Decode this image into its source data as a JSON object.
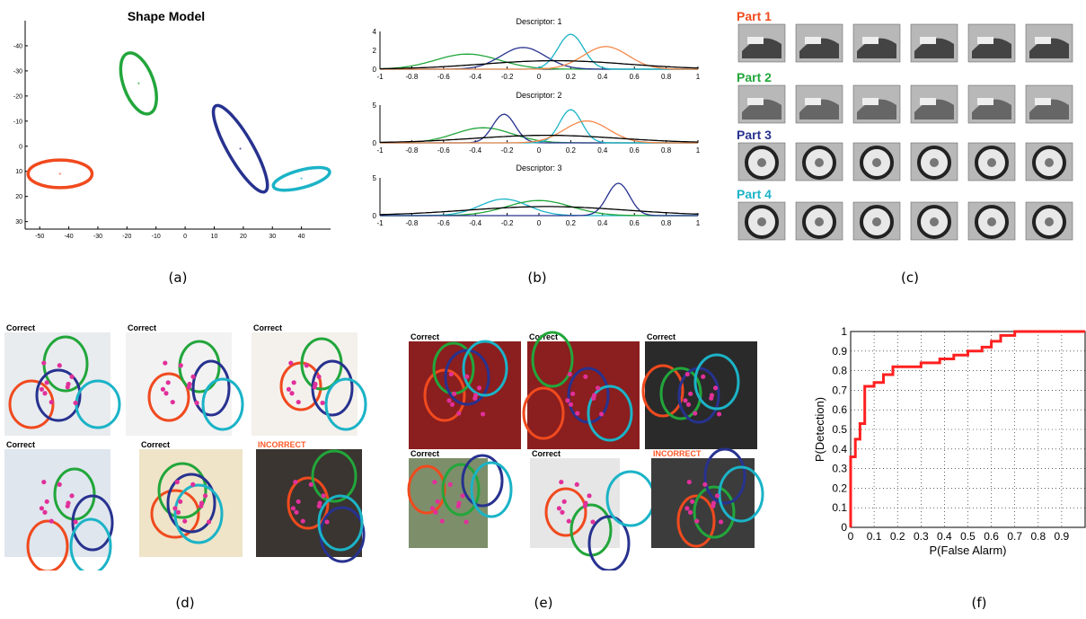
{
  "captions": {
    "a": "(a)",
    "b": "(b)",
    "c": "(c)",
    "d": "(d)",
    "e": "(e)",
    "f": "(f)"
  },
  "shape_model": {
    "title": "Shape Model",
    "x_ticks": [
      "-50",
      "-40",
      "-30",
      "-20",
      "-10",
      "0",
      "10",
      "20",
      "30",
      "40"
    ],
    "y_ticks": [
      "-40",
      "-30",
      "-20",
      "-10",
      "0",
      "10",
      "20",
      "30"
    ],
    "ellipses": [
      {
        "part": 1,
        "color": "#f04a1e",
        "cx": -43,
        "cy": 11,
        "rx": 11,
        "ry": 5.5,
        "angle": 0
      },
      {
        "part": 2,
        "color": "#22a63b",
        "cx": -16,
        "cy": -25,
        "rx": 11,
        "ry": 6,
        "angle": 70
      },
      {
        "part": 3,
        "color": "#27328f",
        "cx": 19,
        "cy": 1,
        "rx": 17,
        "ry": 5,
        "angle": 60
      },
      {
        "part": 4,
        "color": "#1bb3c7",
        "cx": 40,
        "cy": 13,
        "rx": 10,
        "ry": 3.5,
        "angle": -15
      }
    ]
  },
  "chart_data": [
    {
      "type": "line",
      "title": "Descriptor: 1",
      "xlim": [
        -1,
        1
      ],
      "ylim": [
        0,
        4
      ],
      "x_ticks": [
        "-1",
        "-0.8",
        "-0.6",
        "-0.4",
        "-0.2",
        "0",
        "0.2",
        "0.4",
        "0.6",
        "0.8",
        "1"
      ],
      "y_ticks": [
        "0",
        "2",
        "4"
      ],
      "series": [
        {
          "color": "#22a63b",
          "mean": -0.45,
          "sd": 0.2,
          "peak": 1.6
        },
        {
          "color": "#27328f",
          "mean": -0.1,
          "sd": 0.14,
          "peak": 2.3
        },
        {
          "color": "#1bb3c7",
          "mean": 0.2,
          "sd": 0.08,
          "peak": 3.7
        },
        {
          "color": "#f5884a",
          "mean": 0.42,
          "sd": 0.14,
          "peak": 2.4
        },
        {
          "color": "#000000",
          "mean": 0.1,
          "sd": 0.45,
          "peak": 0.9
        }
      ]
    },
    {
      "type": "line",
      "title": "Descriptor: 2",
      "xlim": [
        -1,
        1
      ],
      "ylim": [
        0,
        5
      ],
      "x_ticks": [
        "-1",
        "-0.8",
        "-0.6",
        "-0.4",
        "-0.2",
        "0",
        "0.2",
        "0.4",
        "0.6",
        "0.8",
        "1"
      ],
      "y_ticks": [
        "0",
        "5"
      ],
      "series": [
        {
          "color": "#22a63b",
          "mean": -0.35,
          "sd": 0.18,
          "peak": 2.0
        },
        {
          "color": "#27328f",
          "mean": -0.22,
          "sd": 0.07,
          "peak": 3.8
        },
        {
          "color": "#1bb3c7",
          "mean": 0.2,
          "sd": 0.07,
          "peak": 4.4
        },
        {
          "color": "#f5884a",
          "mean": 0.3,
          "sd": 0.14,
          "peak": 2.9
        },
        {
          "color": "#000000",
          "mean": 0.05,
          "sd": 0.45,
          "peak": 1.0
        }
      ]
    },
    {
      "type": "line",
      "title": "Descriptor: 3",
      "xlim": [
        -1,
        1
      ],
      "ylim": [
        0,
        5
      ],
      "x_ticks": [
        "-1",
        "-0.8",
        "-0.6",
        "-0.4",
        "-0.2",
        "0",
        "0.2",
        "0.4",
        "0.6",
        "0.8",
        "1"
      ],
      "y_ticks": [
        "0",
        "5"
      ],
      "series": [
        {
          "color": "#1bb3c7",
          "mean": -0.22,
          "sd": 0.15,
          "peak": 2.2
        },
        {
          "color": "#22a63b",
          "mean": 0.0,
          "sd": 0.2,
          "peak": 2.0
        },
        {
          "color": "#27328f",
          "mean": 0.5,
          "sd": 0.07,
          "peak": 4.3
        },
        {
          "color": "#000000",
          "mean": 0.05,
          "sd": 0.5,
          "peak": 1.2
        }
      ]
    },
    {
      "type": "line",
      "xlabel": "P(False Alarm)",
      "ylabel": "P(Detection)",
      "xlim": [
        0,
        1
      ],
      "ylim": [
        0,
        1
      ],
      "x_ticks": [
        "0",
        "0.1",
        "0.2",
        "0.3",
        "0.4",
        "0.5",
        "0.6",
        "0.7",
        "0.8",
        "0.9"
      ],
      "y_ticks": [
        "0",
        "0.1",
        "0.2",
        "0.3",
        "0.4",
        "0.5",
        "0.6",
        "0.7",
        "0.8",
        "0.9",
        "1"
      ],
      "grid": true,
      "color": "#ff2020",
      "x": [
        0,
        0,
        0.02,
        0.02,
        0.04,
        0.04,
        0.06,
        0.06,
        0.1,
        0.1,
        0.14,
        0.14,
        0.18,
        0.18,
        0.3,
        0.3,
        0.38,
        0.38,
        0.44,
        0.44,
        0.5,
        0.5,
        0.56,
        0.56,
        0.6,
        0.6,
        0.64,
        0.64,
        0.7,
        0.7,
        1.0
      ],
      "y": [
        0,
        0.36,
        0.36,
        0.45,
        0.45,
        0.53,
        0.53,
        0.72,
        0.72,
        0.74,
        0.74,
        0.78,
        0.78,
        0.82,
        0.82,
        0.84,
        0.84,
        0.86,
        0.86,
        0.88,
        0.88,
        0.9,
        0.9,
        0.92,
        0.92,
        0.95,
        0.95,
        0.98,
        0.98,
        1.0,
        1.0
      ]
    }
  ],
  "parts": [
    {
      "label": "Part 1",
      "color": "#f04a1e"
    },
    {
      "label": "Part 2",
      "color": "#22a63b"
    },
    {
      "label": "Part 3",
      "color": "#27328f"
    },
    {
      "label": "Part 4",
      "color": "#1bb3c7"
    }
  ],
  "detections_d": [
    {
      "label": "Correct",
      "label_color": "#000000",
      "bg": "#e8ecef"
    },
    {
      "label": "Correct",
      "label_color": "#000000",
      "bg": "#f2f2f2"
    },
    {
      "label": "Correct",
      "label_color": "#000000",
      "bg": "#f4f1ec"
    },
    {
      "label": "Correct",
      "label_color": "#000000",
      "bg": "#dfe6ee"
    },
    {
      "label": "Correct",
      "label_color": "#000000",
      "bg": "#efe4c8"
    },
    {
      "label": "INCORRECT",
      "label_color": "#ff5a2a",
      "bg": "#3a3530"
    }
  ],
  "detections_e": [
    {
      "label": "Correct",
      "label_color": "#000000",
      "bg": "#8b1e1e"
    },
    {
      "label": "Correct",
      "label_color": "#000000",
      "bg": "#8b1e1e"
    },
    {
      "label": "Correct",
      "label_color": "#000000",
      "bg": "#2a2a2a"
    },
    {
      "label": "Correct",
      "label_color": "#000000",
      "bg": "#7d8f6a"
    },
    {
      "label": "Correct",
      "label_color": "#000000",
      "bg": "#e6e6e6"
    },
    {
      "label": "INCORRECT",
      "label_color": "#ff5a2a",
      "bg": "#3c3c3c"
    }
  ],
  "colors": {
    "red": "#f04a1e",
    "green": "#22a63b",
    "blue": "#27328f",
    "cyan": "#1bb3c7",
    "magenta": "#e0309a"
  }
}
